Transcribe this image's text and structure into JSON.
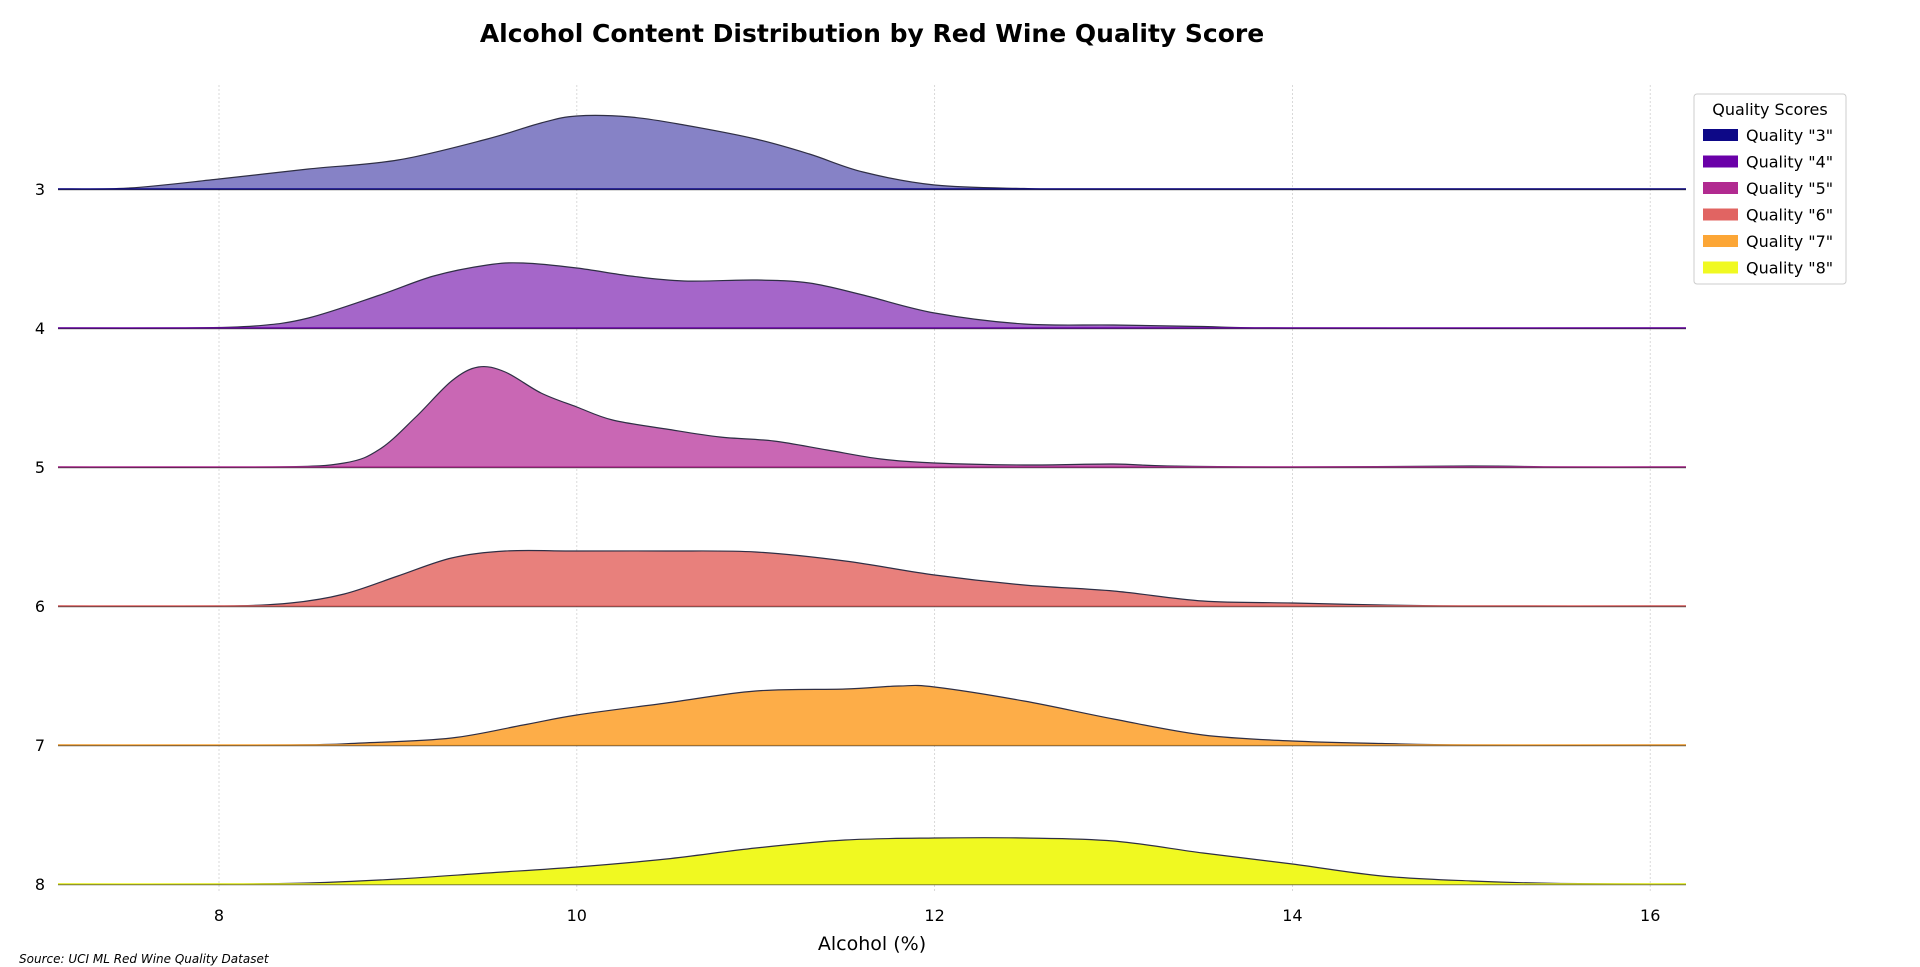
{
  "chart_data": {
    "type": "area",
    "title": "Alcohol Content Distribution by Red Wine Quality Score",
    "xlabel": "Alcohol (%)",
    "ylabel": "",
    "xlim": [
      7.1,
      16.2
    ],
    "x_ticks": [
      8,
      10,
      12,
      14,
      16
    ],
    "grid": "x",
    "source": "Source: UCI ML Red Wine Quality Dataset",
    "legend": {
      "title": "Quality Scores",
      "placement": "top-right",
      "entries": [
        "Quality \"3\"",
        "Quality \"4\"",
        "Quality \"5\"",
        "Quality \"6\"",
        "Quality \"7\"",
        "Quality \"8\""
      ]
    },
    "ridges": [
      {
        "category": "3",
        "fill": "#8682c6",
        "legend_color": "#0d0887",
        "points": [
          [
            7.1,
            0
          ],
          [
            7.5,
            0.01
          ],
          [
            8.0,
            0.1
          ],
          [
            8.5,
            0.2
          ],
          [
            9.0,
            0.29
          ],
          [
            9.5,
            0.5
          ],
          [
            9.8,
            0.66
          ],
          [
            10.0,
            0.73
          ],
          [
            10.3,
            0.72
          ],
          [
            10.6,
            0.64
          ],
          [
            11.0,
            0.5
          ],
          [
            11.3,
            0.35
          ],
          [
            11.6,
            0.17
          ],
          [
            12.0,
            0.04
          ],
          [
            12.5,
            0.005
          ],
          [
            13.0,
            0
          ],
          [
            16.2,
            0
          ]
        ]
      },
      {
        "category": "4",
        "fill": "#a566c9",
        "legend_color": "#6a00a8",
        "points": [
          [
            7.1,
            0
          ],
          [
            7.8,
            0
          ],
          [
            8.2,
            0.02
          ],
          [
            8.5,
            0.1
          ],
          [
            8.9,
            0.33
          ],
          [
            9.2,
            0.52
          ],
          [
            9.5,
            0.63
          ],
          [
            9.7,
            0.65
          ],
          [
            10.0,
            0.6
          ],
          [
            10.3,
            0.52
          ],
          [
            10.6,
            0.47
          ],
          [
            11.0,
            0.48
          ],
          [
            11.3,
            0.45
          ],
          [
            11.6,
            0.33
          ],
          [
            12.0,
            0.15
          ],
          [
            12.5,
            0.04
          ],
          [
            13.0,
            0.03
          ],
          [
            13.5,
            0.015
          ],
          [
            14.0,
            0
          ],
          [
            16.2,
            0
          ]
        ]
      },
      {
        "category": "5",
        "fill": "#c967b4",
        "legend_color": "#b12a90",
        "points": [
          [
            7.1,
            0
          ],
          [
            8.3,
            0
          ],
          [
            8.7,
            0.04
          ],
          [
            8.9,
            0.18
          ],
          [
            9.1,
            0.5
          ],
          [
            9.3,
            0.86
          ],
          [
            9.45,
            1.0
          ],
          [
            9.6,
            0.95
          ],
          [
            9.8,
            0.74
          ],
          [
            10.0,
            0.6
          ],
          [
            10.2,
            0.47
          ],
          [
            10.5,
            0.38
          ],
          [
            10.8,
            0.3
          ],
          [
            11.1,
            0.26
          ],
          [
            11.4,
            0.17
          ],
          [
            11.7,
            0.08
          ],
          [
            12.0,
            0.04
          ],
          [
            12.5,
            0.02
          ],
          [
            13.0,
            0.03
          ],
          [
            13.3,
            0.01
          ],
          [
            14.0,
            0
          ],
          [
            15.0,
            0.01
          ],
          [
            15.5,
            0
          ],
          [
            16.2,
            0
          ]
        ]
      },
      {
        "category": "6",
        "fill": "#e8807c",
        "legend_color": "#e16462",
        "points": [
          [
            7.1,
            0
          ],
          [
            8.0,
            0
          ],
          [
            8.4,
            0.03
          ],
          [
            8.7,
            0.12
          ],
          [
            9.0,
            0.3
          ],
          [
            9.3,
            0.48
          ],
          [
            9.6,
            0.55
          ],
          [
            10.0,
            0.55
          ],
          [
            10.5,
            0.55
          ],
          [
            11.0,
            0.54
          ],
          [
            11.5,
            0.45
          ],
          [
            12.0,
            0.31
          ],
          [
            12.5,
            0.21
          ],
          [
            13.0,
            0.15
          ],
          [
            13.5,
            0.05
          ],
          [
            14.0,
            0.03
          ],
          [
            14.5,
            0.01
          ],
          [
            15.0,
            0
          ],
          [
            16.2,
            0
          ]
        ]
      },
      {
        "category": "7",
        "fill": "#fdad48",
        "legend_color": "#fca636",
        "points": [
          [
            7.1,
            0
          ],
          [
            8.4,
            0
          ],
          [
            8.8,
            0.02
          ],
          [
            9.3,
            0.07
          ],
          [
            9.7,
            0.2
          ],
          [
            10.0,
            0.3
          ],
          [
            10.5,
            0.42
          ],
          [
            11.0,
            0.54
          ],
          [
            11.5,
            0.56
          ],
          [
            11.8,
            0.59
          ],
          [
            12.0,
            0.58
          ],
          [
            12.5,
            0.44
          ],
          [
            13.0,
            0.26
          ],
          [
            13.5,
            0.1
          ],
          [
            14.0,
            0.04
          ],
          [
            14.5,
            0.015
          ],
          [
            15.0,
            0
          ],
          [
            16.2,
            0
          ]
        ]
      },
      {
        "category": "8",
        "fill": "#f0f921",
        "legend_color": "#f0f921",
        "points": [
          [
            7.1,
            0
          ],
          [
            8.0,
            0
          ],
          [
            8.5,
            0.01
          ],
          [
            9.0,
            0.05
          ],
          [
            9.5,
            0.11
          ],
          [
            10.0,
            0.17
          ],
          [
            10.5,
            0.25
          ],
          [
            11.0,
            0.36
          ],
          [
            11.5,
            0.44
          ],
          [
            12.0,
            0.46
          ],
          [
            12.5,
            0.46
          ],
          [
            13.0,
            0.43
          ],
          [
            13.5,
            0.31
          ],
          [
            14.0,
            0.2
          ],
          [
            14.5,
            0.08
          ],
          [
            15.0,
            0.03
          ],
          [
            15.5,
            0.005
          ],
          [
            16.2,
            0
          ]
        ]
      }
    ]
  }
}
